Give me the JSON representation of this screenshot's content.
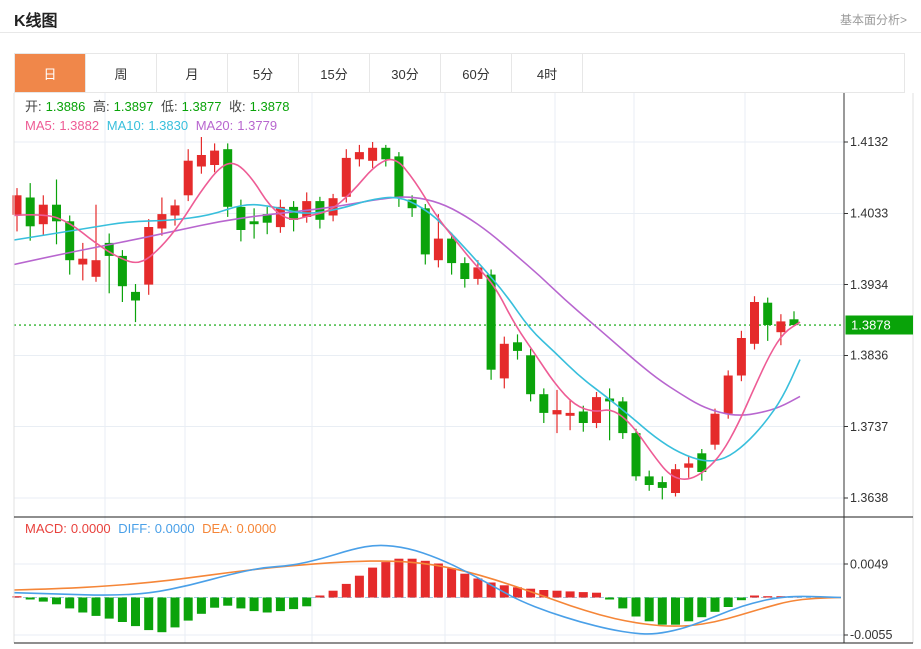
{
  "header": {
    "title": "K线图",
    "more_link": "基本面分析>"
  },
  "tabs": [
    {
      "id": "day",
      "label": "日",
      "selected": true
    },
    {
      "id": "week",
      "label": "周",
      "selected": false
    },
    {
      "id": "month",
      "label": "月",
      "selected": false
    },
    {
      "id": "5min",
      "label": "5分",
      "selected": false
    },
    {
      "id": "15min",
      "label": "15分",
      "selected": false
    },
    {
      "id": "30min",
      "label": "30分",
      "selected": false
    },
    {
      "id": "60min",
      "label": "60分",
      "selected": false
    },
    {
      "id": "4hour",
      "label": "4时",
      "selected": false
    }
  ],
  "ohlc_info": {
    "open_label": "开:",
    "open": "1.3886",
    "high_label": "高:",
    "high": "1.3897",
    "low_label": "低:",
    "low": "1.3877",
    "close_label": "收:",
    "close": "1.3878"
  },
  "ma_info": [
    {
      "label": "MA5:",
      "value": "1.3882",
      "color_key": "ma5"
    },
    {
      "label": "MA10:",
      "value": "1.3830",
      "color_key": "ma10"
    },
    {
      "label": "MA20:",
      "value": "1.3779",
      "color_key": "ma20"
    }
  ],
  "macd_info": [
    {
      "label": "MACD:",
      "value": "0.0000",
      "color_key": "macd_label"
    },
    {
      "label": "DIFF:",
      "value": "0.0000",
      "color_key": "diff_label"
    },
    {
      "label": "DEA:",
      "value": "0.0000",
      "color_key": "dea_label"
    }
  ],
  "colors": {
    "tab_active_bg": "#f0874a",
    "price_text_green": "#09a309",
    "ohlc_label": "#444444",
    "ma5": "#ee5c95",
    "ma10": "#38bfdc",
    "ma20": "#b866cf",
    "macd_label": "#e8413c",
    "diff_label": "#4aa0e8",
    "dea_label": "#f58638",
    "candle_up_red": "#e52b2b",
    "candle_down_green": "#0ba30b",
    "last_price_line": "#2db32d",
    "badge_bg": "#09a309",
    "grid": "#e9eef4",
    "axis_text": "#333333"
  },
  "chart_data": {
    "type": "candlestick",
    "title": "K线图",
    "interval": "日",
    "legend": [
      "MA5",
      "MA10",
      "MA20",
      "MACD",
      "DIFF",
      "DEA"
    ],
    "y_ticks": [
      1.4132,
      1.4033,
      1.3934,
      1.3836,
      1.3737,
      1.3638
    ],
    "last_price": 1.3878,
    "ohlc": {
      "open": 1.3886,
      "high": 1.3897,
      "low": 1.3877,
      "close": 1.3878
    },
    "ma_values": {
      "MA5": 1.3882,
      "MA10": 1.383,
      "MA20": 1.3779
    },
    "candles": [
      [
        1.4031,
        1.4068,
        1.4008,
        1.4058
      ],
      [
        1.4055,
        1.4075,
        1.3995,
        1.4015
      ],
      [
        1.4018,
        1.4058,
        1.4002,
        1.4045
      ],
      [
        1.4045,
        1.408,
        1.399,
        1.4022
      ],
      [
        1.4022,
        1.403,
        1.3948,
        1.3968
      ],
      [
        1.3962,
        1.3992,
        1.394,
        1.397
      ],
      [
        1.3945,
        1.4045,
        1.3938,
        1.3968
      ],
      [
        1.3992,
        1.4005,
        1.3922,
        1.3974
      ],
      [
        1.3974,
        1.3982,
        1.391,
        1.3932
      ],
      [
        1.3924,
        1.3935,
        1.3882,
        1.3912
      ],
      [
        1.3934,
        1.4025,
        1.392,
        1.4014
      ],
      [
        1.4012,
        1.4055,
        1.4002,
        1.4032
      ],
      [
        1.403,
        1.4052,
        1.4016,
        1.4044
      ],
      [
        1.4058,
        1.4122,
        1.405,
        1.4106
      ],
      [
        1.4098,
        1.4139,
        1.4088,
        1.4114
      ],
      [
        1.41,
        1.413,
        1.409,
        1.412
      ],
      [
        1.4122,
        1.413,
        1.4028,
        1.4042
      ],
      [
        1.4042,
        1.4052,
        1.3994,
        1.401
      ],
      [
        1.4022,
        1.404,
        1.3998,
        1.4018
      ],
      [
        1.4032,
        1.4042,
        1.4004,
        1.402
      ],
      [
        1.4014,
        1.4052,
        1.4006,
        1.4042
      ],
      [
        1.4042,
        1.405,
        1.4008,
        1.4024
      ],
      [
        1.4028,
        1.4062,
        1.402,
        1.405
      ],
      [
        1.405,
        1.4056,
        1.4012,
        1.4024
      ],
      [
        1.403,
        1.406,
        1.4022,
        1.4054
      ],
      [
        1.4056,
        1.4122,
        1.4048,
        1.411
      ],
      [
        1.4108,
        1.4128,
        1.4098,
        1.4118
      ],
      [
        1.4106,
        1.4132,
        1.4096,
        1.4124
      ],
      [
        1.4124,
        1.4128,
        1.4098,
        1.4108
      ],
      [
        1.4112,
        1.4118,
        1.4042,
        1.4055
      ],
      [
        1.4052,
        1.4058,
        1.4028,
        1.404
      ],
      [
        1.404,
        1.4046,
        1.3962,
        1.3976
      ],
      [
        1.3968,
        1.4032,
        1.3958,
        1.3998
      ],
      [
        1.3998,
        1.4006,
        1.3948,
        1.3964
      ],
      [
        1.3964,
        1.3972,
        1.393,
        1.3942
      ],
      [
        1.3942,
        1.3968,
        1.3934,
        1.3958
      ],
      [
        1.3948,
        1.3955,
        1.3802,
        1.3816
      ],
      [
        1.3804,
        1.3862,
        1.379,
        1.3852
      ],
      [
        1.3854,
        1.3865,
        1.383,
        1.3842
      ],
      [
        1.3836,
        1.3845,
        1.3772,
        1.3782
      ],
      [
        1.3782,
        1.379,
        1.3742,
        1.3756
      ],
      [
        1.3754,
        1.3788,
        1.3728,
        1.376
      ],
      [
        1.3752,
        1.3775,
        1.3732,
        1.3756
      ],
      [
        1.3758,
        1.3766,
        1.373,
        1.3742
      ],
      [
        1.3742,
        1.3785,
        1.3735,
        1.3778
      ],
      [
        1.3776,
        1.379,
        1.3718,
        1.3772
      ],
      [
        1.3772,
        1.3778,
        1.372,
        1.3728
      ],
      [
        1.3728,
        1.3734,
        1.3662,
        1.3668
      ],
      [
        1.3668,
        1.3676,
        1.3648,
        1.3656
      ],
      [
        1.366,
        1.3668,
        1.3636,
        1.3652
      ],
      [
        1.3645,
        1.3685,
        1.364,
        1.3678
      ],
      [
        1.368,
        1.3696,
        1.3666,
        1.3686
      ],
      [
        1.37,
        1.3706,
        1.3662,
        1.3674
      ],
      [
        1.3712,
        1.3762,
        1.3705,
        1.3755
      ],
      [
        1.3755,
        1.3815,
        1.3748,
        1.3808
      ],
      [
        1.3808,
        1.387,
        1.38,
        1.386
      ],
      [
        1.3852,
        1.3918,
        1.3844,
        1.391
      ],
      [
        1.3909,
        1.3916,
        1.3856,
        1.3878
      ],
      [
        1.3868,
        1.3893,
        1.385,
        1.3883
      ],
      [
        1.3886,
        1.3897,
        1.3877,
        1.3878
      ]
    ],
    "ma5_line": [
      [
        14,
        1.403
      ],
      [
        45,
        1.4033
      ],
      [
        70,
        1.402
      ],
      [
        95,
        1.3992
      ],
      [
        120,
        1.397
      ],
      [
        140,
        1.3962
      ],
      [
        160,
        1.3984
      ],
      [
        180,
        1.4018
      ],
      [
        200,
        1.4062
      ],
      [
        220,
        1.4098
      ],
      [
        235,
        1.4105
      ],
      [
        252,
        1.4082
      ],
      [
        270,
        1.4042
      ],
      [
        290,
        1.4022
      ],
      [
        310,
        1.403
      ],
      [
        330,
        1.4036
      ],
      [
        352,
        1.4062
      ],
      [
        375,
        1.41
      ],
      [
        395,
        1.4112
      ],
      [
        415,
        1.4078
      ],
      [
        435,
        1.4032
      ],
      [
        455,
        1.3996
      ],
      [
        475,
        1.3962
      ],
      [
        495,
        1.3932
      ],
      [
        515,
        1.3878
      ],
      [
        535,
        1.3838
      ],
      [
        555,
        1.3796
      ],
      [
        575,
        1.3766
      ],
      [
        595,
        1.3757
      ],
      [
        612,
        1.3762
      ],
      [
        632,
        1.374
      ],
      [
        652,
        1.37
      ],
      [
        670,
        1.3668
      ],
      [
        688,
        1.3662
      ],
      [
        706,
        1.3676
      ],
      [
        722,
        1.37
      ],
      [
        738,
        1.374
      ],
      [
        754,
        1.379
      ],
      [
        770,
        1.3838
      ],
      [
        784,
        1.3868
      ],
      [
        800,
        1.3882
      ]
    ],
    "ma10_line": [
      [
        14,
        1.3996
      ],
      [
        50,
        1.4004
      ],
      [
        90,
        1.4013
      ],
      [
        130,
        1.4022
      ],
      [
        170,
        1.4023
      ],
      [
        210,
        1.403
      ],
      [
        245,
        1.4047
      ],
      [
        275,
        1.4042
      ],
      [
        305,
        1.4031
      ],
      [
        340,
        1.4039
      ],
      [
        370,
        1.4052
      ],
      [
        400,
        1.4057
      ],
      [
        430,
        1.4035
      ],
      [
        455,
        1.4
      ],
      [
        480,
        1.3962
      ],
      [
        505,
        1.3922
      ],
      [
        530,
        1.3872
      ],
      [
        555,
        1.384
      ],
      [
        580,
        1.3806
      ],
      [
        605,
        1.378
      ],
      [
        630,
        1.3752
      ],
      [
        655,
        1.3722
      ],
      [
        680,
        1.37
      ],
      [
        705,
        1.3688
      ],
      [
        725,
        1.3692
      ],
      [
        745,
        1.3712
      ],
      [
        765,
        1.3742
      ],
      [
        783,
        1.3778
      ],
      [
        800,
        1.383
      ]
    ],
    "ma20_line": [
      [
        14,
        1.3962
      ],
      [
        60,
        1.3976
      ],
      [
        100,
        1.3987
      ],
      [
        140,
        1.3998
      ],
      [
        180,
        1.401
      ],
      [
        220,
        1.4022
      ],
      [
        260,
        1.403
      ],
      [
        300,
        1.4036
      ],
      [
        340,
        1.4043
      ],
      [
        380,
        1.4053
      ],
      [
        410,
        1.4057
      ],
      [
        440,
        1.4048
      ],
      [
        465,
        1.403
      ],
      [
        490,
        1.4006
      ],
      [
        515,
        1.3976
      ],
      [
        540,
        1.3946
      ],
      [
        565,
        1.3913
      ],
      [
        590,
        1.3883
      ],
      [
        615,
        1.3853
      ],
      [
        640,
        1.3823
      ],
      [
        660,
        1.3801
      ],
      [
        680,
        1.3783
      ],
      [
        700,
        1.3766
      ],
      [
        720,
        1.3756
      ],
      [
        740,
        1.3752
      ],
      [
        760,
        1.3756
      ],
      [
        780,
        1.3764
      ],
      [
        800,
        1.3779
      ]
    ],
    "macd": {
      "macd": 0.0,
      "diff": 0.0,
      "dea": 0.0,
      "y_ticks": [
        0.0049,
        -0.0055
      ],
      "histogram": [
        0.0001,
        -0.0003,
        -0.0006,
        -0.001,
        -0.0016,
        -0.0022,
        -0.0027,
        -0.0031,
        -0.0036,
        -0.0042,
        -0.0048,
        -0.0051,
        -0.0044,
        -0.0034,
        -0.0024,
        -0.0015,
        -0.0012,
        -0.0016,
        -0.002,
        -0.0022,
        -0.002,
        -0.0017,
        -0.0013,
        0.0003,
        0.001,
        0.002,
        0.0032,
        0.0044,
        0.0052,
        0.0057,
        0.0057,
        0.0054,
        0.005,
        0.0043,
        0.0035,
        0.0028,
        0.0022,
        0.0018,
        0.0015,
        0.0013,
        0.0011,
        0.001,
        0.0009,
        0.0008,
        0.0007,
        -0.0003,
        -0.0016,
        -0.0028,
        -0.0035,
        -0.004,
        -0.004,
        -0.0035,
        -0.0029,
        -0.0021,
        -0.0014,
        -0.0004,
        0.0003,
        0.0,
        0.0001,
        0.0
      ],
      "diff_line": [
        [
          14,
          0.0007
        ],
        [
          60,
          0.0005
        ],
        [
          110,
          0.0003
        ],
        [
          150,
          0.0006
        ],
        [
          190,
          0.0018
        ],
        [
          230,
          0.0034
        ],
        [
          262,
          0.0044
        ],
        [
          292,
          0.0047
        ],
        [
          322,
          0.0057
        ],
        [
          352,
          0.0071
        ],
        [
          378,
          0.0078
        ],
        [
          408,
          0.0073
        ],
        [
          438,
          0.0058
        ],
        [
          468,
          0.0037
        ],
        [
          495,
          0.0015
        ],
        [
          520,
          -0.0005
        ],
        [
          550,
          -0.0022
        ],
        [
          580,
          -0.0036
        ],
        [
          610,
          -0.0047
        ],
        [
          635,
          -0.0053
        ],
        [
          655,
          -0.0054
        ],
        [
          680,
          -0.0047
        ],
        [
          705,
          -0.0034
        ],
        [
          730,
          -0.0019
        ],
        [
          755,
          -0.0007
        ],
        [
          778,
          0.0
        ],
        [
          800,
          0.0002
        ],
        [
          841,
          0.0
        ]
      ],
      "dea_line": [
        [
          14,
          0.0011
        ],
        [
          60,
          0.0013
        ],
        [
          110,
          0.0017
        ],
        [
          150,
          0.0022
        ],
        [
          190,
          0.0029
        ],
        [
          230,
          0.0037
        ],
        [
          270,
          0.0044
        ],
        [
          310,
          0.0049
        ],
        [
          350,
          0.0053
        ],
        [
          390,
          0.0054
        ],
        [
          420,
          0.0051
        ],
        [
          450,
          0.0044
        ],
        [
          480,
          0.0033
        ],
        [
          510,
          0.0019
        ],
        [
          540,
          0.0004
        ],
        [
          570,
          -0.0012
        ],
        [
          600,
          -0.0026
        ],
        [
          630,
          -0.0036
        ],
        [
          660,
          -0.0042
        ],
        [
          690,
          -0.0042
        ],
        [
          715,
          -0.0036
        ],
        [
          740,
          -0.0026
        ],
        [
          765,
          -0.0015
        ],
        [
          790,
          -0.0005
        ],
        [
          815,
          -0.0001
        ],
        [
          841,
          0.0
        ]
      ]
    }
  }
}
